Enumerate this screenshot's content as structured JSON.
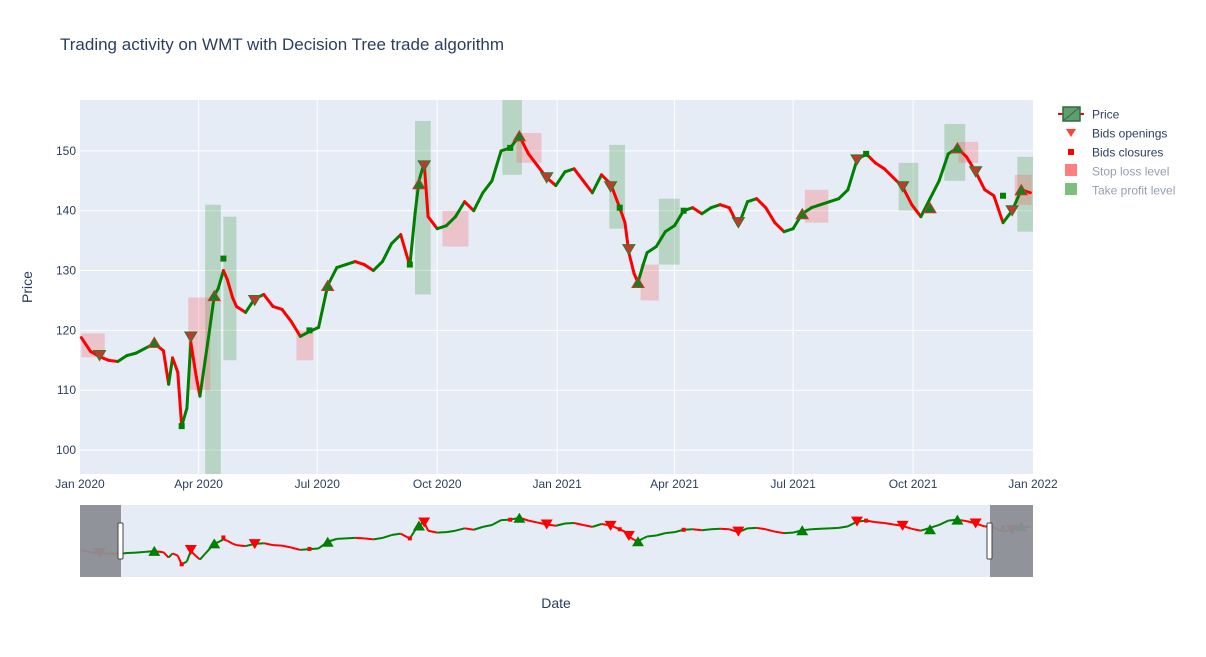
{
  "chart_data": {
    "type": "line",
    "title": "Trading activity on WMT with Decision Tree trade algorithm",
    "xlabel": "Date",
    "ylabel": "Price",
    "xlim": [
      "2020-01-01",
      "2022-01-01"
    ],
    "ylim": [
      96,
      158.5
    ],
    "x_ticks": [
      {
        "date": "2020-01-01",
        "label": "Jan 2020"
      },
      {
        "date": "2020-04-01",
        "label": "Apr 2020"
      },
      {
        "date": "2020-07-01",
        "label": "Jul 2020"
      },
      {
        "date": "2020-10-01",
        "label": "Oct 2020"
      },
      {
        "date": "2021-01-01",
        "label": "Jan 2021"
      },
      {
        "date": "2021-04-01",
        "label": "Apr 2021"
      },
      {
        "date": "2021-07-01",
        "label": "Jul 2021"
      },
      {
        "date": "2021-10-01",
        "label": "Oct 2021"
      },
      {
        "date": "2022-01-01",
        "label": "Jan 2022"
      }
    ],
    "y_ticks": [
      100,
      110,
      120,
      130,
      140,
      150
    ],
    "grid": true,
    "legend_placement": "right",
    "legend": [
      {
        "name": "Price",
        "enabled": true
      },
      {
        "name": "Bids openings",
        "enabled": true
      },
      {
        "name": "Bids closures",
        "enabled": true
      },
      {
        "name": "Stop loss level",
        "enabled": false
      },
      {
        "name": "Take profit level",
        "enabled": false
      }
    ],
    "colors": {
      "increasing": "#008000",
      "decreasing": "#ff0000",
      "stop_loss": "#ff4d4d",
      "take_profit": "#2e8b2e",
      "opening_marker": "#ff4136",
      "closure_marker": "#ff0000",
      "plot_bg": "#e5ecf6",
      "text": "#2a3f5f"
    },
    "price_series": [
      [
        "2020-01-02",
        118.8
      ],
      [
        "2020-01-09",
        116.5
      ],
      [
        "2020-01-16",
        115.6
      ],
      [
        "2020-01-23",
        115.0
      ],
      [
        "2020-01-30",
        114.8
      ],
      [
        "2020-02-06",
        115.8
      ],
      [
        "2020-02-13",
        116.2
      ],
      [
        "2020-02-20",
        117.0
      ],
      [
        "2020-02-27",
        117.8
      ],
      [
        "2020-03-05",
        116.6
      ],
      [
        "2020-03-09",
        111.0
      ],
      [
        "2020-03-12",
        115.4
      ],
      [
        "2020-03-16",
        113.0
      ],
      [
        "2020-03-19",
        104.0
      ],
      [
        "2020-03-23",
        107.0
      ],
      [
        "2020-03-26",
        118.0
      ],
      [
        "2020-03-30",
        112.5
      ],
      [
        "2020-04-02",
        109.0
      ],
      [
        "2020-04-06",
        115.0
      ],
      [
        "2020-04-09",
        119.5
      ],
      [
        "2020-04-13",
        125.8
      ],
      [
        "2020-04-16",
        127.0
      ],
      [
        "2020-04-20",
        130.0
      ],
      [
        "2020-04-23",
        128.5
      ],
      [
        "2020-04-27",
        125.5
      ],
      [
        "2020-04-30",
        124.0
      ],
      [
        "2020-05-07",
        123.0
      ],
      [
        "2020-05-14",
        125.3
      ],
      [
        "2020-05-21",
        126.0
      ],
      [
        "2020-05-28",
        124.0
      ],
      [
        "2020-06-04",
        123.5
      ],
      [
        "2020-06-11",
        121.5
      ],
      [
        "2020-06-18",
        119.0
      ],
      [
        "2020-06-25",
        119.8
      ],
      [
        "2020-07-02",
        120.5
      ],
      [
        "2020-07-09",
        127.5
      ],
      [
        "2020-07-16",
        130.5
      ],
      [
        "2020-07-23",
        131.0
      ],
      [
        "2020-07-30",
        131.5
      ],
      [
        "2020-08-06",
        131.0
      ],
      [
        "2020-08-13",
        130.0
      ],
      [
        "2020-08-20",
        131.5
      ],
      [
        "2020-08-27",
        134.5
      ],
      [
        "2020-09-03",
        136.0
      ],
      [
        "2020-09-10",
        130.8
      ],
      [
        "2020-09-14",
        139.5
      ],
      [
        "2020-09-17",
        145.0
      ],
      [
        "2020-09-21",
        148.0
      ],
      [
        "2020-09-24",
        139.0
      ],
      [
        "2020-10-01",
        137.0
      ],
      [
        "2020-10-08",
        137.5
      ],
      [
        "2020-10-15",
        139.0
      ],
      [
        "2020-10-22",
        141.5
      ],
      [
        "2020-10-29",
        140.0
      ],
      [
        "2020-11-05",
        143.0
      ],
      [
        "2020-11-12",
        145.0
      ],
      [
        "2020-11-19",
        150.0
      ],
      [
        "2020-11-26",
        150.5
      ],
      [
        "2020-12-03",
        152.5
      ],
      [
        "2020-12-10",
        149.5
      ],
      [
        "2020-12-17",
        147.5
      ],
      [
        "2020-12-24",
        145.5
      ],
      [
        "2020-12-31",
        144.2
      ],
      [
        "2021-01-07",
        146.5
      ],
      [
        "2021-01-14",
        147.0
      ],
      [
        "2021-01-21",
        145.0
      ],
      [
        "2021-01-28",
        143.0
      ],
      [
        "2021-02-04",
        146.0
      ],
      [
        "2021-02-11",
        144.5
      ],
      [
        "2021-02-18",
        140.5
      ],
      [
        "2021-02-22",
        138.0
      ],
      [
        "2021-02-25",
        133.0
      ],
      [
        "2021-03-01",
        129.5
      ],
      [
        "2021-03-04",
        128.0
      ],
      [
        "2021-03-08",
        131.0
      ],
      [
        "2021-03-11",
        133.0
      ],
      [
        "2021-03-18",
        134.0
      ],
      [
        "2021-03-25",
        136.5
      ],
      [
        "2021-04-01",
        137.5
      ],
      [
        "2021-04-08",
        140.0
      ],
      [
        "2021-04-15",
        140.5
      ],
      [
        "2021-04-22",
        139.5
      ],
      [
        "2021-04-29",
        140.5
      ],
      [
        "2021-05-06",
        141.0
      ],
      [
        "2021-05-13",
        140.5
      ],
      [
        "2021-05-20",
        137.5
      ],
      [
        "2021-05-27",
        141.5
      ],
      [
        "2021-06-03",
        142.0
      ],
      [
        "2021-06-10",
        140.5
      ],
      [
        "2021-06-17",
        138.0
      ],
      [
        "2021-06-24",
        136.5
      ],
      [
        "2021-07-01",
        137.0
      ],
      [
        "2021-07-08",
        139.5
      ],
      [
        "2021-07-15",
        140.5
      ],
      [
        "2021-07-22",
        141.0
      ],
      [
        "2021-07-29",
        141.5
      ],
      [
        "2021-08-05",
        142.0
      ],
      [
        "2021-08-12",
        143.5
      ],
      [
        "2021-08-19",
        148.5
      ],
      [
        "2021-08-26",
        149.5
      ],
      [
        "2021-09-02",
        148.0
      ],
      [
        "2021-09-09",
        147.0
      ],
      [
        "2021-09-16",
        145.5
      ],
      [
        "2021-09-23",
        144.0
      ],
      [
        "2021-09-30",
        141.0
      ],
      [
        "2021-10-07",
        139.0
      ],
      [
        "2021-10-14",
        142.0
      ],
      [
        "2021-10-21",
        145.0
      ],
      [
        "2021-10-28",
        149.5
      ],
      [
        "2021-11-04",
        150.5
      ],
      [
        "2021-11-11",
        149.0
      ],
      [
        "2021-11-18",
        146.5
      ],
      [
        "2021-11-25",
        143.5
      ],
      [
        "2021-12-02",
        142.5
      ],
      [
        "2021-12-09",
        138.0
      ],
      [
        "2021-12-16",
        140.0
      ],
      [
        "2021-12-23",
        143.5
      ],
      [
        "2021-12-30",
        143.0
      ]
    ],
    "openings_down": [
      [
        "2020-01-16",
        115.8
      ],
      [
        "2020-03-26",
        118.9
      ],
      [
        "2020-05-14",
        125.0
      ],
      [
        "2020-09-21",
        147.5
      ],
      [
        "2020-12-24",
        145.5
      ],
      [
        "2021-02-11",
        144.0
      ],
      [
        "2021-02-25",
        133.5
      ],
      [
        "2021-05-20",
        138.0
      ],
      [
        "2021-08-19",
        148.5
      ],
      [
        "2021-09-23",
        144.0
      ],
      [
        "2021-11-18",
        146.5
      ],
      [
        "2021-12-16",
        140.0
      ]
    ],
    "openings_up": [
      [
        "2020-02-27",
        118.0
      ],
      [
        "2020-04-13",
        125.8
      ],
      [
        "2020-07-09",
        127.5
      ],
      [
        "2020-09-17",
        144.5
      ],
      [
        "2020-12-03",
        152.5
      ],
      [
        "2021-03-04",
        128.0
      ],
      [
        "2021-07-08",
        139.5
      ],
      [
        "2021-10-14",
        140.5
      ],
      [
        "2021-11-04",
        150.5
      ],
      [
        "2021-12-23",
        143.5
      ]
    ],
    "closures": [
      [
        "2020-03-19",
        104.0
      ],
      [
        "2020-04-20",
        132.0
      ],
      [
        "2020-06-25",
        120.0
      ],
      [
        "2020-09-10",
        131.0
      ],
      [
        "2020-11-26",
        150.5
      ],
      [
        "2021-02-18",
        140.5
      ],
      [
        "2021-04-08",
        140.0
      ],
      [
        "2021-08-26",
        149.5
      ],
      [
        "2021-12-09",
        142.5
      ]
    ],
    "stop_loss_boxes": [
      [
        "2020-01-02",
        "2020-01-20",
        115.5,
        119.5
      ],
      [
        "2020-03-24",
        "2020-04-10",
        110.0,
        125.5
      ],
      [
        "2020-06-15",
        "2020-06-28",
        115.0,
        120.0
      ],
      [
        "2020-10-05",
        "2020-10-25",
        134.0,
        140.0
      ],
      [
        "2020-12-01",
        "2020-12-20",
        148.0,
        153.0
      ],
      [
        "2021-03-06",
        "2021-03-20",
        125.0,
        131.0
      ],
      [
        "2021-07-10",
        "2021-07-28",
        138.0,
        143.5
      ],
      [
        "2021-11-05",
        "2021-11-20",
        148.0,
        151.5
      ],
      [
        "2021-12-18",
        "2021-12-31",
        141.0,
        146.0
      ]
    ],
    "take_profit_boxes": [
      [
        "2020-04-06",
        "2020-04-18",
        96.0,
        141.0
      ],
      [
        "2020-04-20",
        "2020-04-30",
        115.0,
        139.0
      ],
      [
        "2020-09-14",
        "2020-09-26",
        126.0,
        155.0
      ],
      [
        "2020-11-20",
        "2020-12-05",
        146.0,
        158.5
      ],
      [
        "2021-02-10",
        "2021-02-22",
        137.0,
        151.0
      ],
      [
        "2021-03-20",
        "2021-04-05",
        131.0,
        142.0
      ],
      [
        "2021-09-20",
        "2021-10-05",
        140.0,
        148.0
      ],
      [
        "2021-10-25",
        "2021-11-10",
        145.0,
        154.5
      ],
      [
        "2021-12-20",
        "2022-01-01",
        136.5,
        149.0
      ]
    ]
  }
}
